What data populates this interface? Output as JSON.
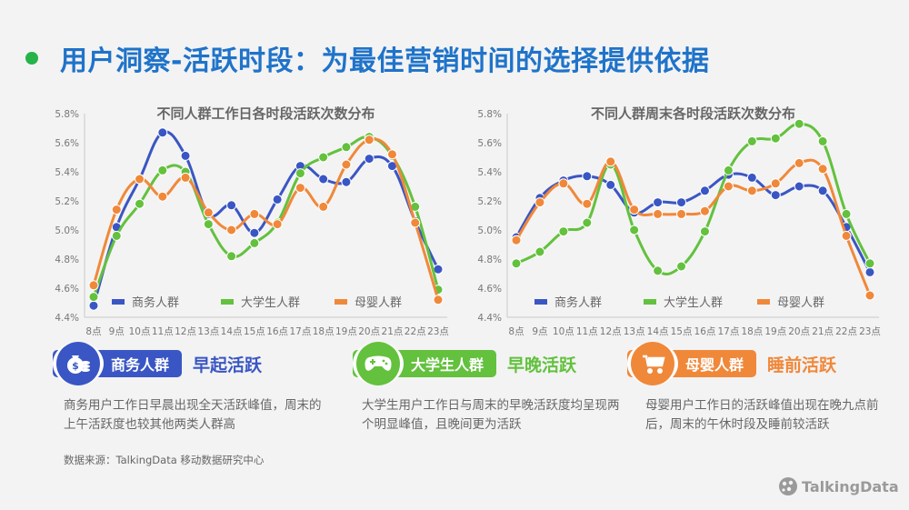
{
  "title": "用户洞察-活跃时段：为最佳营销时间的选择提供依据",
  "colors": {
    "business": "#3a56c4",
    "student": "#63c13e",
    "mom": "#f0883a",
    "title_blue": "#1f73c9",
    "dot_green": "#26b34a"
  },
  "chart_data": [
    {
      "type": "line",
      "title": "不同人群工作日各时段活跃次数分布",
      "categories": [
        "8点",
        "9点",
        "10点",
        "11点",
        "12点",
        "13点",
        "14点",
        "15点",
        "16点",
        "17点",
        "18点",
        "19点",
        "20点",
        "21点",
        "22点",
        "23点"
      ],
      "yticks": [
        "4.4%",
        "4.6%",
        "4.8%",
        "5.0%",
        "5.2%",
        "5.4%",
        "5.6%",
        "5.8%"
      ],
      "ylim": [
        4.4,
        5.8
      ],
      "series": [
        {
          "name": "商务人群",
          "color": "#3a56c4",
          "values": [
            4.48,
            5.02,
            5.35,
            5.67,
            5.51,
            5.11,
            5.17,
            4.98,
            5.21,
            5.44,
            5.35,
            5.33,
            5.49,
            5.44,
            5.06,
            4.73
          ]
        },
        {
          "name": "大学生人群",
          "color": "#63c13e",
          "values": [
            4.54,
            4.96,
            5.18,
            5.41,
            5.4,
            5.04,
            4.82,
            4.91,
            5.05,
            5.39,
            5.5,
            5.57,
            5.64,
            5.51,
            5.16,
            4.59
          ]
        },
        {
          "name": "母婴人群",
          "color": "#f0883a",
          "values": [
            4.62,
            5.14,
            5.35,
            5.23,
            5.36,
            5.12,
            5.0,
            5.11,
            5.04,
            5.29,
            5.16,
            5.45,
            5.62,
            5.52,
            5.05,
            4.52
          ]
        }
      ]
    },
    {
      "type": "line",
      "title": "不同人群周末各时段活跃次数分布",
      "categories": [
        "8点",
        "9点",
        "10点",
        "11点",
        "12点",
        "13点",
        "14点",
        "15点",
        "16点",
        "17点",
        "18点",
        "19点",
        "20点",
        "21点",
        "22点",
        "23点"
      ],
      "yticks": [
        "4.4%",
        "4.6%",
        "4.8%",
        "5.0%",
        "5.2%",
        "5.4%",
        "5.6%",
        "5.8%"
      ],
      "ylim": [
        4.4,
        5.8
      ],
      "series": [
        {
          "name": "商务人群",
          "color": "#3a56c4",
          "values": [
            4.95,
            5.22,
            5.34,
            5.37,
            5.31,
            5.12,
            5.19,
            5.19,
            5.27,
            5.38,
            5.36,
            5.24,
            5.3,
            5.27,
            5.02,
            4.71
          ]
        },
        {
          "name": "大学生人群",
          "color": "#63c13e",
          "values": [
            4.77,
            4.85,
            4.99,
            5.05,
            5.45,
            5.0,
            4.72,
            4.75,
            4.99,
            5.41,
            5.61,
            5.63,
            5.73,
            5.61,
            5.11,
            4.77
          ]
        },
        {
          "name": "母婴人群",
          "color": "#f0883a",
          "values": [
            4.93,
            5.19,
            5.32,
            5.18,
            5.47,
            5.14,
            5.11,
            5.11,
            5.13,
            5.3,
            5.27,
            5.32,
            5.46,
            5.42,
            4.96,
            4.55
          ]
        }
      ]
    }
  ],
  "groups": [
    {
      "label": "商务人群",
      "tag": "早起活跃",
      "icon": "money-bag-icon",
      "color": "#3a56c4",
      "desc": "商务用户工作日早晨出现全天活跃峰值，周末的上午活跃度也较其他两类人群高"
    },
    {
      "label": "大学生人群",
      "tag": "早晚活跃",
      "icon": "gamepad-icon",
      "color": "#63c13e",
      "desc": "大学生用户工作日与周末的早晚活跃度均呈现两个明显峰值，且晚间更为活跃"
    },
    {
      "label": "母婴人群",
      "tag": "睡前活跃",
      "icon": "stroller-icon",
      "color": "#f0883a",
      "desc": "母婴用户工作日的活跃峰值出现在晚九点前后，周末的午休时段及睡前较活跃"
    }
  ],
  "source": "数据来源：TalkingData 移动数据研究中心",
  "logo": "TalkingData"
}
